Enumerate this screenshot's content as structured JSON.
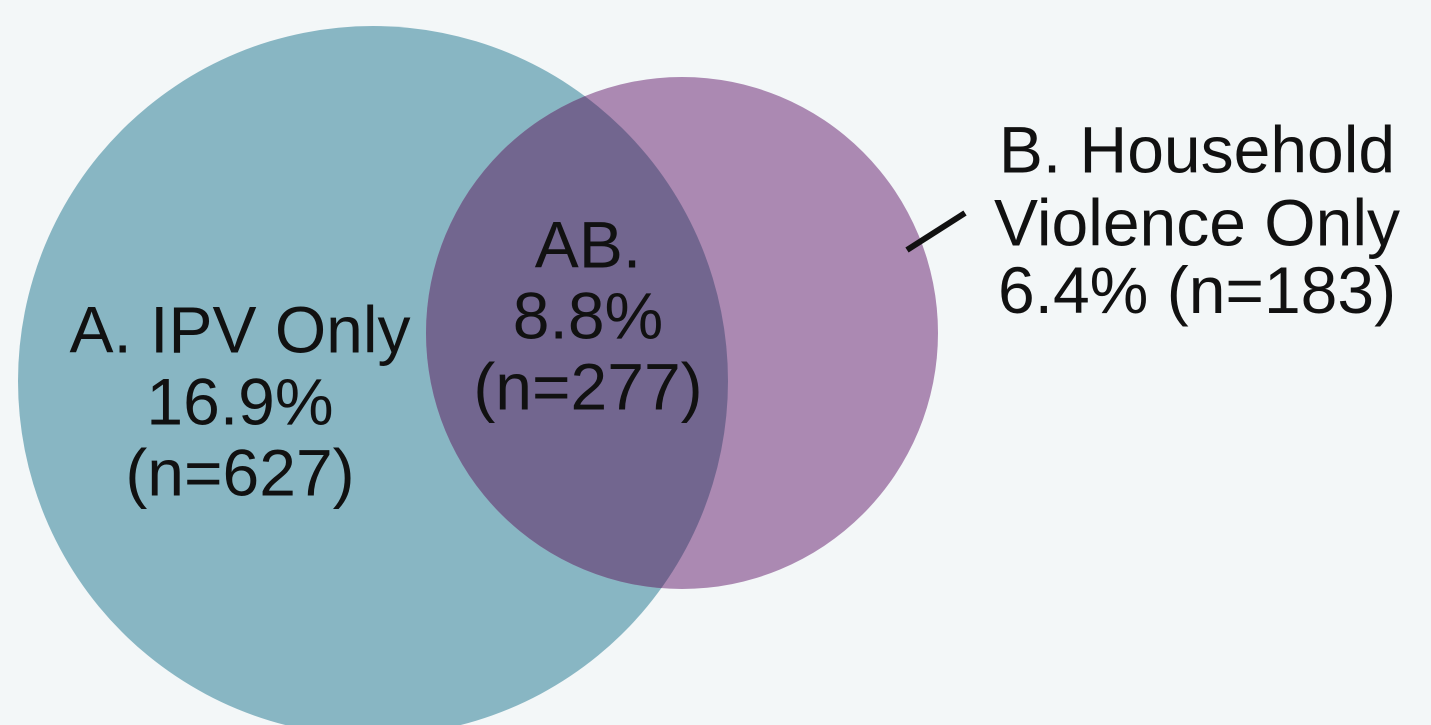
{
  "chart_data": {
    "type": "venn",
    "labels": [
      [
        "A. IPV Only"
      ],
      [
        "AB."
      ],
      [
        "B. Household",
        "Violence Only"
      ]
    ],
    "values": [
      16.9,
      8.8,
      6.4
    ],
    "value_labels": [
      "16.9%",
      "8.8%",
      "6.4%"
    ],
    "counts": [
      627,
      277,
      183
    ],
    "count_labels": [
      "(n=627)",
      "(n=277)",
      "(n=183)"
    ],
    "colors": [
      "#88b6c3",
      "#72668f",
      "#ab89b2"
    ]
  }
}
